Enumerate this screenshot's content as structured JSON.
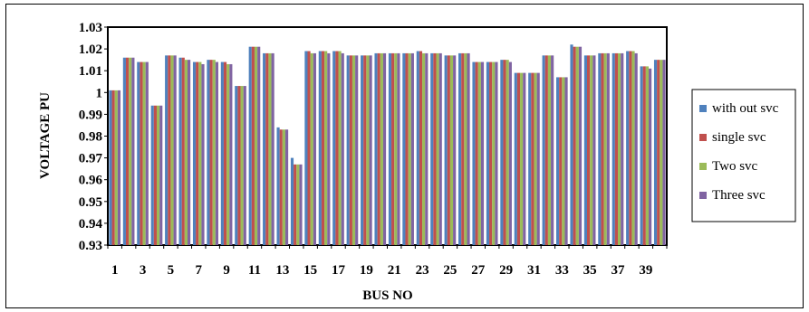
{
  "chart_data": {
    "type": "bar",
    "title": "",
    "xlabel": "BUS NO",
    "ylabel": "VOLTAGE PU",
    "ylim": [
      0.93,
      1.03
    ],
    "yticks": [
      "0.93",
      "0.94",
      "0.95",
      "0.96",
      "0.97",
      "0.98",
      "0.99",
      "1",
      "1.01",
      "1.02",
      "1.03"
    ],
    "categories": [
      "1",
      "2",
      "3",
      "4",
      "5",
      "6",
      "7",
      "8",
      "9",
      "10",
      "11",
      "12",
      "13",
      "14",
      "15",
      "16",
      "17",
      "18",
      "19",
      "20",
      "21",
      "22",
      "23",
      "24",
      "25",
      "26",
      "27",
      "28",
      "29",
      "30",
      "31",
      "32",
      "33",
      "34",
      "35",
      "36",
      "37",
      "38",
      "39",
      "40"
    ],
    "xtick_labels": [
      "1",
      "",
      "3",
      "",
      "5",
      "",
      "7",
      "",
      "9",
      "",
      "11",
      "",
      "13",
      "",
      "15",
      "",
      "17",
      "",
      "19",
      "",
      "21",
      "",
      "23",
      "",
      "25",
      "",
      "27",
      "",
      "29",
      "",
      "31",
      "",
      "33",
      "",
      "35",
      "",
      "37",
      "",
      "39",
      ""
    ],
    "grid": false,
    "legend_position": "right",
    "series": [
      {
        "name": "with out svc",
        "color": "#4F81BD",
        "values": [
          1.001,
          1.016,
          1.014,
          0.994,
          1.017,
          1.016,
          1.014,
          1.015,
          1.014,
          1.003,
          1.021,
          1.018,
          0.984,
          0.97,
          1.019,
          1.019,
          1.019,
          1.017,
          1.017,
          1.018,
          1.018,
          1.018,
          1.019,
          1.018,
          1.017,
          1.018,
          1.014,
          1.014,
          1.015,
          1.009,
          1.009,
          1.017,
          1.007,
          1.022,
          1.017,
          1.018,
          1.018,
          1.019,
          1.012,
          1.015
        ]
      },
      {
        "name": "single svc",
        "color": "#C0504D",
        "values": [
          1.001,
          1.016,
          1.014,
          0.994,
          1.017,
          1.016,
          1.014,
          1.015,
          1.014,
          1.003,
          1.021,
          1.018,
          0.983,
          0.967,
          1.019,
          1.019,
          1.019,
          1.017,
          1.017,
          1.018,
          1.018,
          1.018,
          1.019,
          1.018,
          1.017,
          1.018,
          1.014,
          1.014,
          1.015,
          1.009,
          1.009,
          1.017,
          1.007,
          1.021,
          1.017,
          1.018,
          1.018,
          1.019,
          1.012,
          1.015
        ]
      },
      {
        "name": "Two svc",
        "color": "#9BBB59",
        "values": [
          1.001,
          1.016,
          1.014,
          0.994,
          1.017,
          1.015,
          1.014,
          1.015,
          1.013,
          1.003,
          1.021,
          1.018,
          0.983,
          0.967,
          1.018,
          1.019,
          1.019,
          1.017,
          1.017,
          1.018,
          1.018,
          1.018,
          1.018,
          1.018,
          1.017,
          1.018,
          1.014,
          1.014,
          1.015,
          1.009,
          1.009,
          1.017,
          1.007,
          1.021,
          1.017,
          1.018,
          1.018,
          1.019,
          1.012,
          1.015
        ]
      },
      {
        "name": "Three svc",
        "color": "#8064A2",
        "values": [
          1.001,
          1.016,
          1.014,
          0.994,
          1.017,
          1.015,
          1.013,
          1.014,
          1.013,
          1.003,
          1.021,
          1.018,
          0.983,
          0.967,
          1.018,
          1.018,
          1.018,
          1.017,
          1.017,
          1.018,
          1.018,
          1.018,
          1.018,
          1.018,
          1.017,
          1.018,
          1.014,
          1.014,
          1.014,
          1.009,
          1.009,
          1.017,
          1.007,
          1.021,
          1.017,
          1.018,
          1.018,
          1.018,
          1.011,
          1.015
        ]
      }
    ]
  }
}
